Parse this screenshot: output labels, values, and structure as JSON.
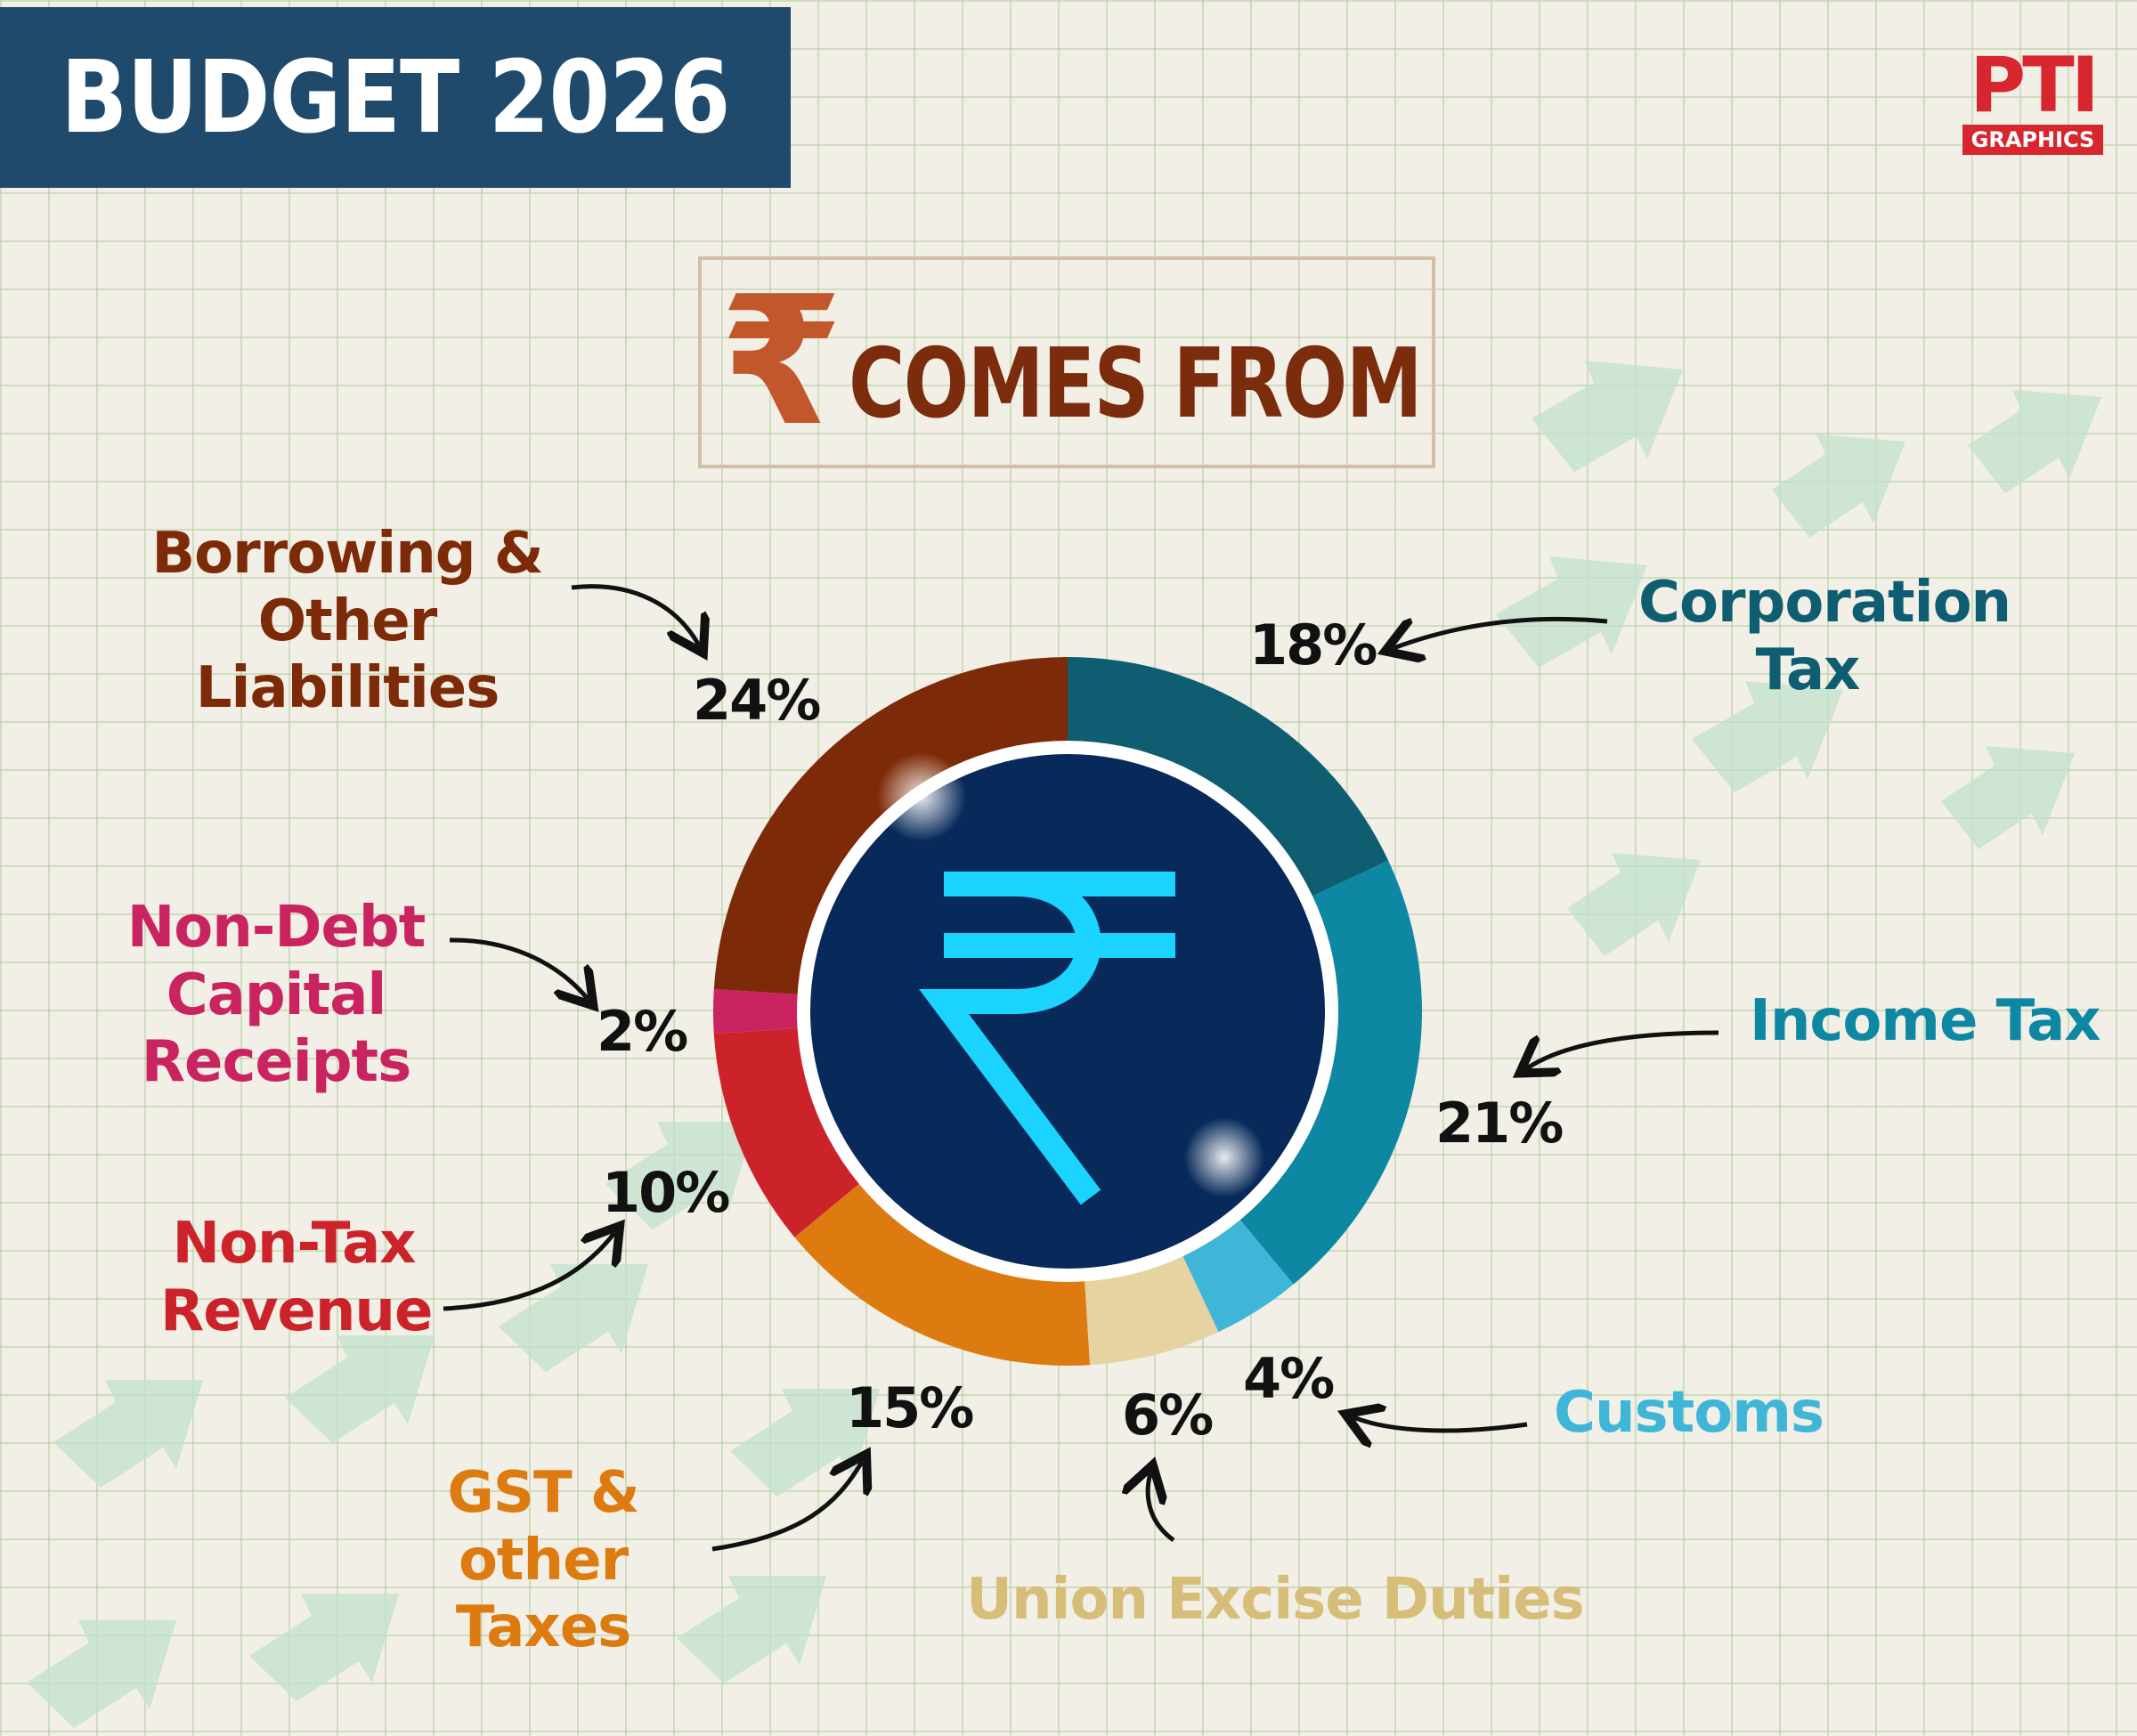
{
  "banner": {
    "title": "BUDGET 2026"
  },
  "logo": {
    "mark": "PTI",
    "caption": "GRAPHICS"
  },
  "header": {
    "symbol": "₹",
    "title": "COMES FROM"
  },
  "center_icon": "rupee-icon",
  "colors": {
    "background": "#f1efe6",
    "banner": "#1f4a6b",
    "center": "#082a5a",
    "center_symbol": "#1ad3ff",
    "title": "#7a2c0d",
    "title_symbol": "#c1572a"
  },
  "chart_data": {
    "type": "pie",
    "donut": true,
    "title": "COMES FROM",
    "unit": "%",
    "series": [
      {
        "name": "Corporation Tax",
        "value": 18,
        "label": "18%",
        "color": "#0f5d70"
      },
      {
        "name": "Income Tax",
        "value": 21,
        "label": "21%",
        "color": "#0e87a3"
      },
      {
        "name": "Customs",
        "value": 4,
        "label": "4%",
        "color": "#3fb6d8"
      },
      {
        "name": "Union Excise Duties",
        "value": 6,
        "label": "6%",
        "color": "#e6d3a1"
      },
      {
        "name": "GST & other Taxes",
        "value": 15,
        "label": "15%",
        "color": "#dd7a10"
      },
      {
        "name": "Non-Tax Revenue",
        "value": 10,
        "label": "10%",
        "color": "#cc2229"
      },
      {
        "name": "Non-Debt Capital Receipts",
        "value": 2,
        "label": "2%",
        "color": "#c9245f"
      },
      {
        "name": "Borrowing & Other Liabilities",
        "value": 24,
        "label": "24%",
        "color": "#7d2a08"
      }
    ],
    "labels": [
      {
        "text": "Corporation\nTax",
        "color": "#0f5d70"
      },
      {
        "text": "Income Tax",
        "color": "#0e87a3"
      },
      {
        "text": "Customs",
        "color": "#3fb6d8"
      },
      {
        "text": "Union Excise Duties",
        "color": "#d6bd78"
      },
      {
        "text": "GST & other\nTaxes",
        "color": "#dd7a10"
      },
      {
        "text": "Non-Tax\nRevenue",
        "color": "#cc2229"
      },
      {
        "text": "Non-Debt\nCapital Receipts",
        "color": "#c9245f"
      },
      {
        "text": "Borrowing &\nOther Liabilities",
        "color": "#7d2a08"
      }
    ]
  }
}
